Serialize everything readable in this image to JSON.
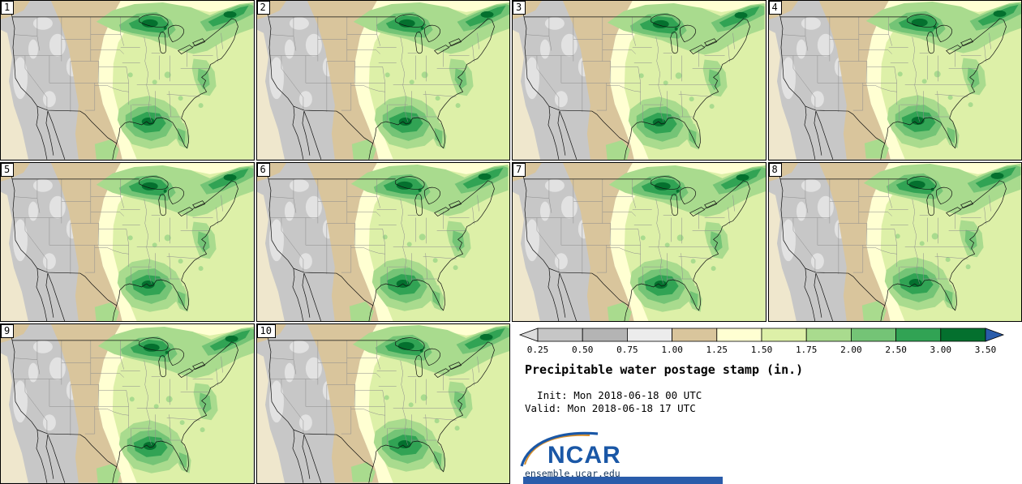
{
  "title_block": {
    "title": "Precipitable water postage stamp (in.)",
    "init_line": "  Init: Mon 2018-06-18 00 UTC",
    "valid_line": "Valid: Mon 2018-06-18 17 UTC"
  },
  "panels": [
    {
      "label": "1"
    },
    {
      "label": "2"
    },
    {
      "label": "3"
    },
    {
      "label": "4"
    },
    {
      "label": "5"
    },
    {
      "label": "6"
    },
    {
      "label": "7"
    },
    {
      "label": "8"
    },
    {
      "label": "9"
    },
    {
      "label": "10"
    }
  ],
  "colorbar": {
    "labels": [
      "0.25",
      "0.50",
      "0.75",
      "1.00",
      "1.25",
      "1.50",
      "1.75",
      "2.00",
      "2.50",
      "3.00",
      "3.50"
    ],
    "under_color": "#dcdcdc",
    "segment_colors": [
      "#c6c6c6",
      "#b4b4b4",
      "#ececec",
      "#d9c59c",
      "#ffffd2",
      "#ddf0a8",
      "#a9db8e",
      "#74c476",
      "#31a354",
      "#04702e"
    ],
    "over_color": "#2a5caa",
    "outline_color": "#000000"
  },
  "map_palette": {
    "gray_low": "#c7c7c7",
    "gray_lighter": "#e2e2e2",
    "coast_cream": "#efe7cd",
    "tan": "#d9c59c",
    "cream": "#ffffd2",
    "yellow_green": "#ddf0a8",
    "light_green": "#a9db8e",
    "medium_green": "#74c476",
    "dark_green": "#31a354",
    "darkest_green": "#04702e",
    "state_line": "#8d8d8d",
    "coast_line": "#111111"
  },
  "branding": {
    "logo_text": "NCAR",
    "logo_color": "#1a57a6",
    "swoosh_color": "#1a57a6",
    "swoosh_accent": "#d78f2c",
    "url": "ensemble.ucar.edu",
    "url_color": "#16365c",
    "footer_bar_color": "#2a5caa"
  }
}
